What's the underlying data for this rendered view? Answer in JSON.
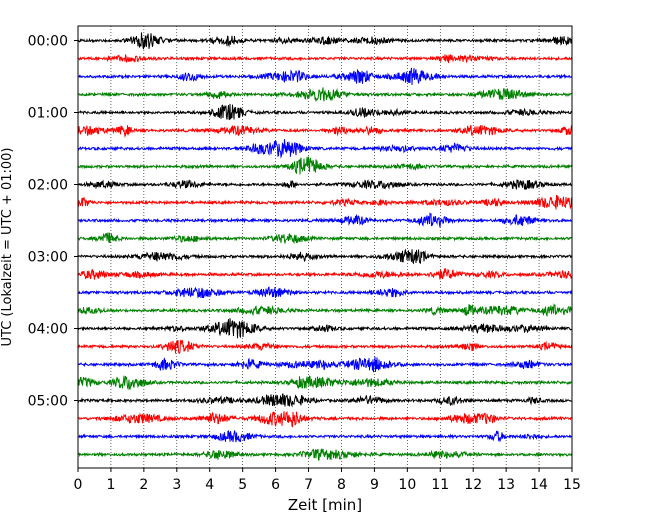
{
  "chart_data": {
    "type": "line",
    "title": "",
    "xlabel": "Zeit  [min]",
    "ylabel": "UTC (Lokalzeit = UTC + 01:00)",
    "xlim": [
      0,
      15
    ],
    "xticks": [
      "0",
      "1",
      "2",
      "3",
      "4",
      "5",
      "6",
      "7",
      "8",
      "9",
      "10",
      "11",
      "12",
      "13",
      "14",
      "15"
    ],
    "yticks": [
      {
        "label": "00:00",
        "trace": 0
      },
      {
        "label": "01:00",
        "trace": 4
      },
      {
        "label": "02:00",
        "trace": 8
      },
      {
        "label": "03:00",
        "trace": 12
      },
      {
        "label": "04:00",
        "trace": 16
      },
      {
        "label": "05:00",
        "trace": 20
      }
    ],
    "trace_interval_min": 15,
    "trace_count": 24,
    "trace_color_cycle": [
      "#000000",
      "#ff0000",
      "#0000ff",
      "#008000"
    ],
    "grid": "vertical dotted"
  }
}
